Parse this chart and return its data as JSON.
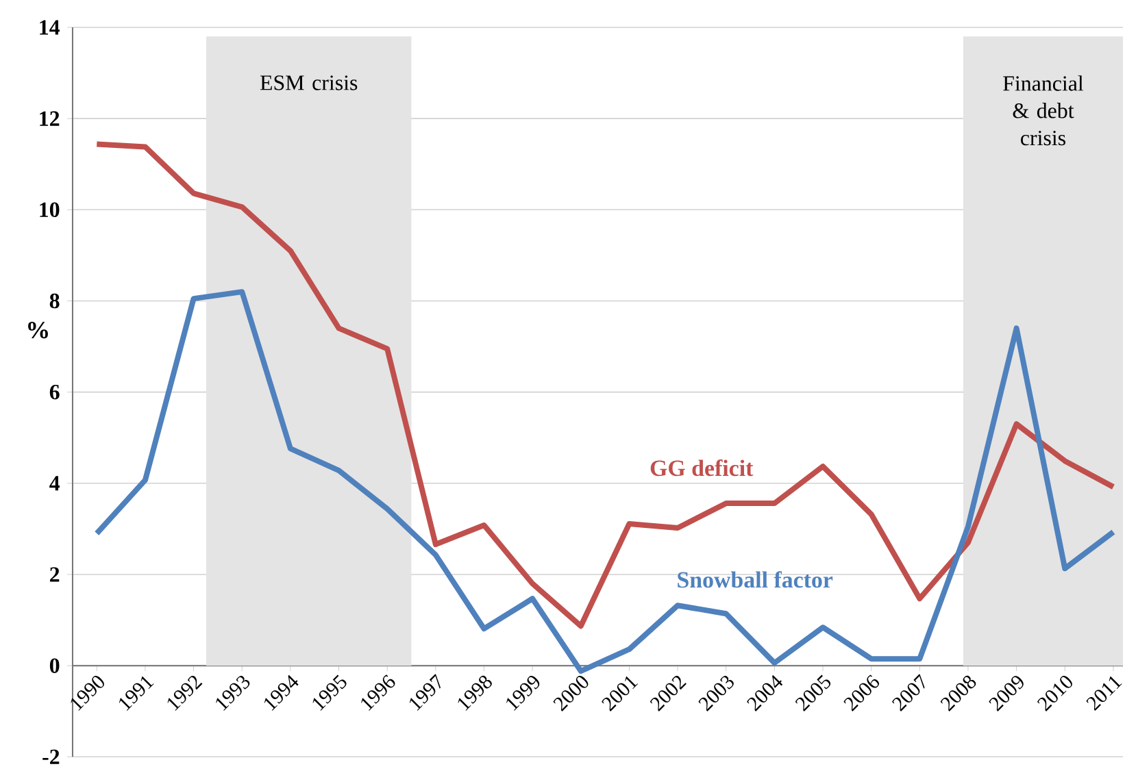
{
  "chart_data": {
    "type": "line",
    "ylabel": "%",
    "x": [
      1990,
      1991,
      1992,
      1993,
      1994,
      1995,
      1996,
      1997,
      1998,
      1999,
      2000,
      2001,
      2002,
      2003,
      2004,
      2005,
      2006,
      2007,
      2008,
      2009,
      2010,
      2011
    ],
    "series": [
      {
        "name": "GG deficit",
        "color": "#c0504d",
        "values": [
          11.44,
          11.38,
          10.36,
          10.06,
          9.1,
          7.4,
          6.95,
          2.66,
          3.08,
          1.8,
          0.87,
          3.11,
          3.02,
          3.56,
          3.56,
          4.37,
          3.32,
          1.47,
          2.7,
          5.3,
          4.49,
          3.92
        ]
      },
      {
        "name": "Snowball factor",
        "color": "#4f81bd",
        "values": [
          2.9,
          4.07,
          8.05,
          8.2,
          4.76,
          4.28,
          3.44,
          2.43,
          0.81,
          1.47,
          -0.12,
          0.36,
          1.32,
          1.14,
          0.06,
          0.84,
          0.15,
          0.15,
          3.05,
          7.4,
          2.13,
          2.93
        ]
      }
    ],
    "xlim": [
      1989.5,
      2011.2
    ],
    "xticks": [
      1990,
      1991,
      1992,
      1993,
      1994,
      1995,
      1996,
      1997,
      1998,
      1999,
      2000,
      2001,
      2002,
      2003,
      2004,
      2005,
      2006,
      2007,
      2008,
      2009,
      2010,
      2011
    ],
    "ylim": [
      -2,
      14
    ],
    "yticks": [
      -2,
      0,
      2,
      4,
      6,
      8,
      10,
      12,
      14
    ],
    "grid": "y",
    "bands": [
      {
        "axis": "x",
        "from": 1992.26,
        "to": 1996.5,
        "label": "ESM crisis",
        "color": "#e4e4e4"
      },
      {
        "axis": "x",
        "from": 2007.9,
        "to": 2011.2,
        "label": "Financial & debt crisis",
        "color": "#e4e4e4"
      }
    ]
  }
}
